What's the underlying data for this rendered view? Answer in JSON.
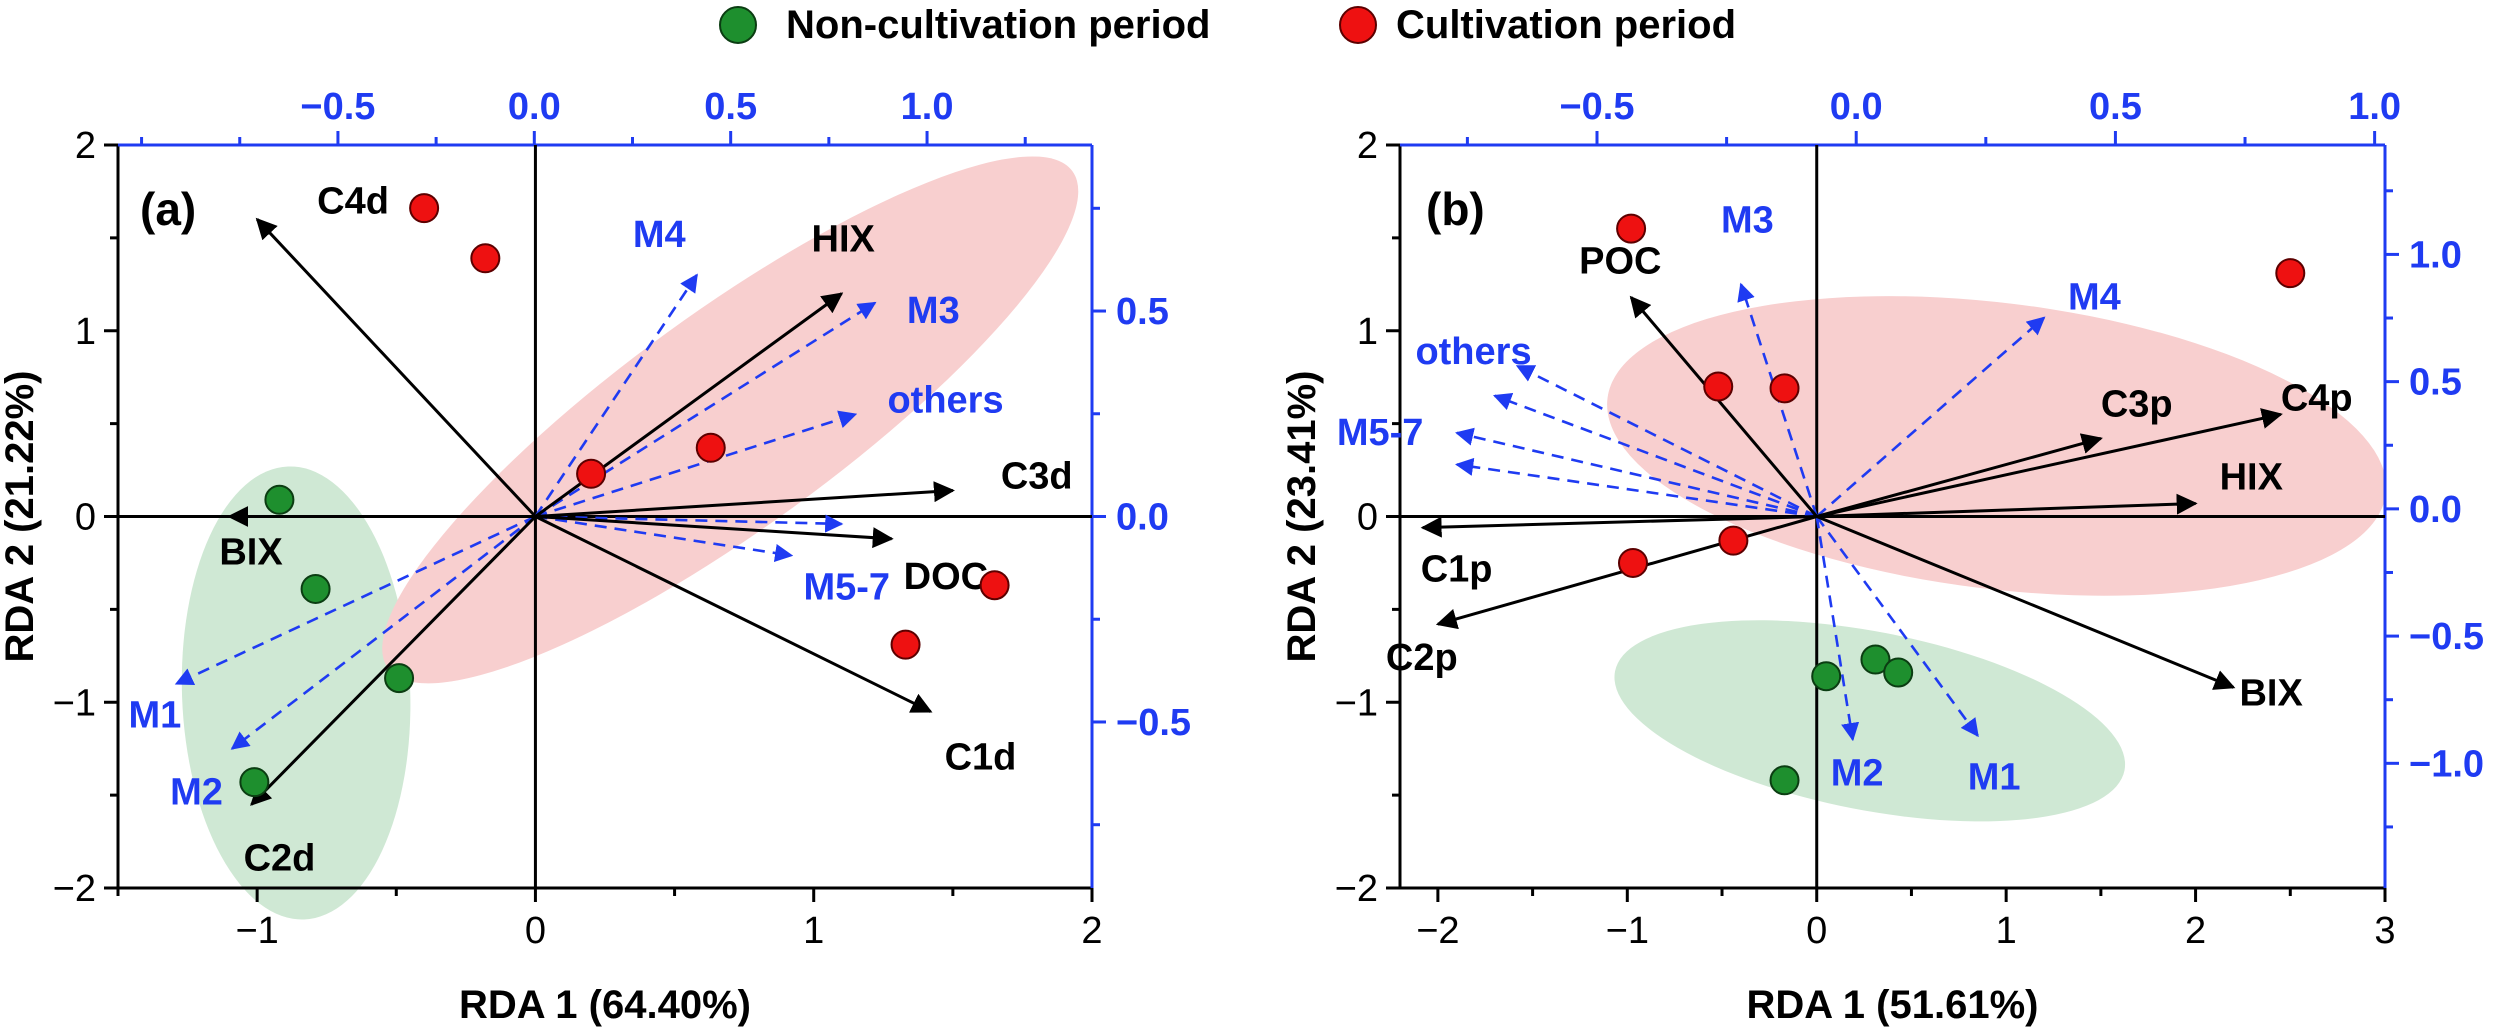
{
  "colors": {
    "black": "#000000",
    "blue": "#1f3bf2",
    "green_dot": "#1e8f2e",
    "red_dot": "#ee1111",
    "green_ellipse": "#cfe8d4",
    "red_ellipse": "#f8cfcf"
  },
  "legend": [
    {
      "label": "Non-cultivation period",
      "color": "#1e8f2e"
    },
    {
      "label": "Cultivation period",
      "color": "#ee1111"
    }
  ],
  "chart_data": [
    {
      "type": "scatter",
      "panel": "(a)",
      "xlabel": "RDA 1 (64.40%)",
      "ylabel": "RDA 2 (21.22%)",
      "xlim": [
        -1.5,
        2.0
      ],
      "ylim": [
        -2.0,
        2.0
      ],
      "xticks": [
        "−1",
        "0",
        "1",
        "2"
      ],
      "xtick_values": [
        -1,
        0,
        1,
        2
      ],
      "yticks": [
        "−2",
        "−1",
        "0",
        "1",
        "2"
      ],
      "ytick_values": [
        -2,
        -1,
        0,
        1,
        2
      ],
      "top_axis": {
        "lim": [
          -1.06,
          1.42
        ],
        "ticks": [
          "−0.5",
          "0.0",
          "0.5",
          "1.0"
        ],
        "tick_values": [
          -0.5,
          0.0,
          0.5,
          1.0
        ]
      },
      "right_axis": {
        "lim": [
          -0.904,
          0.904
        ],
        "ticks": [
          "−0.5",
          "0.0",
          "0.5"
        ],
        "tick_values": [
          -0.5,
          0.0,
          0.5
        ]
      },
      "ellipses": [
        {
          "group": "Non-cultivation period",
          "cx": -0.86,
          "cy": -0.95,
          "rx": 0.41,
          "ry": 1.22,
          "angle": -2
        },
        {
          "group": "Cultivation period",
          "cx": 0.7,
          "cy": 0.52,
          "rx": 1.52,
          "ry": 0.58,
          "angle": -36
        }
      ],
      "points": [
        {
          "group": "Non-cultivation period",
          "x": -0.92,
          "y": 0.09
        },
        {
          "group": "Non-cultivation period",
          "x": -0.79,
          "y": -0.39
        },
        {
          "group": "Non-cultivation period",
          "x": -0.49,
          "y": -0.87
        },
        {
          "group": "Non-cultivation period",
          "x": -1.01,
          "y": -1.43
        },
        {
          "group": "Cultivation period",
          "x": -0.4,
          "y": 1.66
        },
        {
          "group": "Cultivation period",
          "x": -0.18,
          "y": 1.39
        },
        {
          "group": "Cultivation period",
          "x": 0.2,
          "y": 0.23
        },
        {
          "group": "Cultivation period",
          "x": 0.63,
          "y": 0.37
        },
        {
          "group": "Cultivation period",
          "x": 1.65,
          "y": -0.37
        },
        {
          "group": "Cultivation period",
          "x": 1.33,
          "y": -0.69
        }
      ],
      "arrows_env": [
        {
          "label": "C4d",
          "x": -1.0,
          "y": 1.6
        },
        {
          "label": "HIX",
          "x": 1.1,
          "y": 1.2
        },
        {
          "label": "C3d",
          "x": 1.5,
          "y": 0.14
        },
        {
          "label": "DOC",
          "x": 1.28,
          "y": -0.12
        },
        {
          "label": "C1d",
          "x": 1.42,
          "y": -1.05
        },
        {
          "label": "BIX",
          "x": -1.1,
          "y": 0.0
        },
        {
          "label": "C2d",
          "x": -1.02,
          "y": -1.55
        }
      ],
      "arrows_species": [
        {
          "label": "M4",
          "x": 0.58,
          "y": 1.3
        },
        {
          "label": "M3",
          "x": 1.22,
          "y": 1.15
        },
        {
          "label": "others",
          "x": 1.15,
          "y": 0.55
        },
        {
          "label": "M5-7",
          "x": 0.92,
          "y": -0.21
        },
        {
          "label": "M1",
          "x": -1.29,
          "y": -0.9
        },
        {
          "label": "M2",
          "x": -1.09,
          "y": -1.25
        },
        {
          "label": "",
          "x": 1.1,
          "y": -0.04
        }
      ]
    },
    {
      "type": "scatter",
      "panel": "(b)",
      "xlabel": "RDA 1 (51.61%)",
      "ylabel": "RDA 2 (23.41%)",
      "xlim": [
        -2.2,
        3.0
      ],
      "ylim": [
        -2.0,
        2.0
      ],
      "xticks": [
        "−2",
        "−1",
        "0",
        "1",
        "2",
        "3"
      ],
      "xtick_values": [
        -2,
        -1,
        0,
        1,
        2,
        3
      ],
      "yticks": [
        "−2",
        "−1",
        "0",
        "1",
        "2"
      ],
      "ytick_values": [
        -2,
        -1,
        0,
        1,
        2
      ],
      "top_axis": {
        "lim": [
          -0.88,
          1.02
        ],
        "ticks": [
          "−0.5",
          "0.0",
          "0.5",
          "1.0"
        ],
        "tick_values": [
          -0.5,
          0.0,
          0.5,
          1.0
        ]
      },
      "right_axis": {
        "lim": [
          -1.49,
          1.43
        ],
        "ticks": [
          "−1.0",
          "−0.5",
          "0.0",
          "0.5",
          "1.0"
        ],
        "tick_values": [
          -1.0,
          -0.5,
          0.0,
          0.5,
          1.0
        ]
      },
      "ellipses": [
        {
          "group": "Non-cultivation period",
          "cx": 0.28,
          "cy": -1.1,
          "rx": 1.37,
          "ry": 0.48,
          "angle": 11
        },
        {
          "group": "Cultivation period",
          "cx": 0.95,
          "cy": 0.38,
          "rx": 2.07,
          "ry": 0.77,
          "angle": 7
        }
      ],
      "points": [
        {
          "group": "Non-cultivation period",
          "x": 0.05,
          "y": -0.86
        },
        {
          "group": "Non-cultivation period",
          "x": 0.31,
          "y": -0.77
        },
        {
          "group": "Non-cultivation period",
          "x": 0.43,
          "y": -0.84
        },
        {
          "group": "Non-cultivation period",
          "x": -0.17,
          "y": -1.42
        },
        {
          "group": "Cultivation period",
          "x": -0.98,
          "y": 1.55
        },
        {
          "group": "Cultivation period",
          "x": -0.52,
          "y": 0.7
        },
        {
          "group": "Cultivation period",
          "x": -0.17,
          "y": 0.69
        },
        {
          "group": "Cultivation period",
          "x": -0.44,
          "y": -0.13
        },
        {
          "group": "Cultivation period",
          "x": -0.97,
          "y": -0.25
        },
        {
          "group": "Cultivation period",
          "x": 2.5,
          "y": 1.31
        }
      ],
      "arrows_env": [
        {
          "label": "POC",
          "x": -0.98,
          "y": 1.18
        },
        {
          "label": "C3p",
          "x": 1.5,
          "y": 0.42
        },
        {
          "label": "C4p",
          "x": 2.45,
          "y": 0.55
        },
        {
          "label": "HIX",
          "x": 2.0,
          "y": 0.07
        },
        {
          "label": "C1p",
          "x": -2.08,
          "y": -0.06
        },
        {
          "label": "C2p",
          "x": -2.0,
          "y": -0.58
        },
        {
          "label": "BIX",
          "x": 2.2,
          "y": -0.92
        }
      ],
      "arrows_species": [
        {
          "label": "M3",
          "x": -0.4,
          "y": 1.25
        },
        {
          "label": "M4",
          "x": 1.2,
          "y": 1.07
        },
        {
          "label": "others",
          "x": -1.58,
          "y": 0.81
        },
        {
          "label": "M5-7",
          "x": -1.9,
          "y": 0.45
        },
        {
          "label": "M2",
          "x": 0.19,
          "y": -1.2
        },
        {
          "label": "M1",
          "x": 0.85,
          "y": -1.18
        },
        {
          "label": "",
          "x": -1.9,
          "y": 0.28
        },
        {
          "label": "",
          "x": -1.7,
          "y": 0.65
        }
      ]
    }
  ]
}
